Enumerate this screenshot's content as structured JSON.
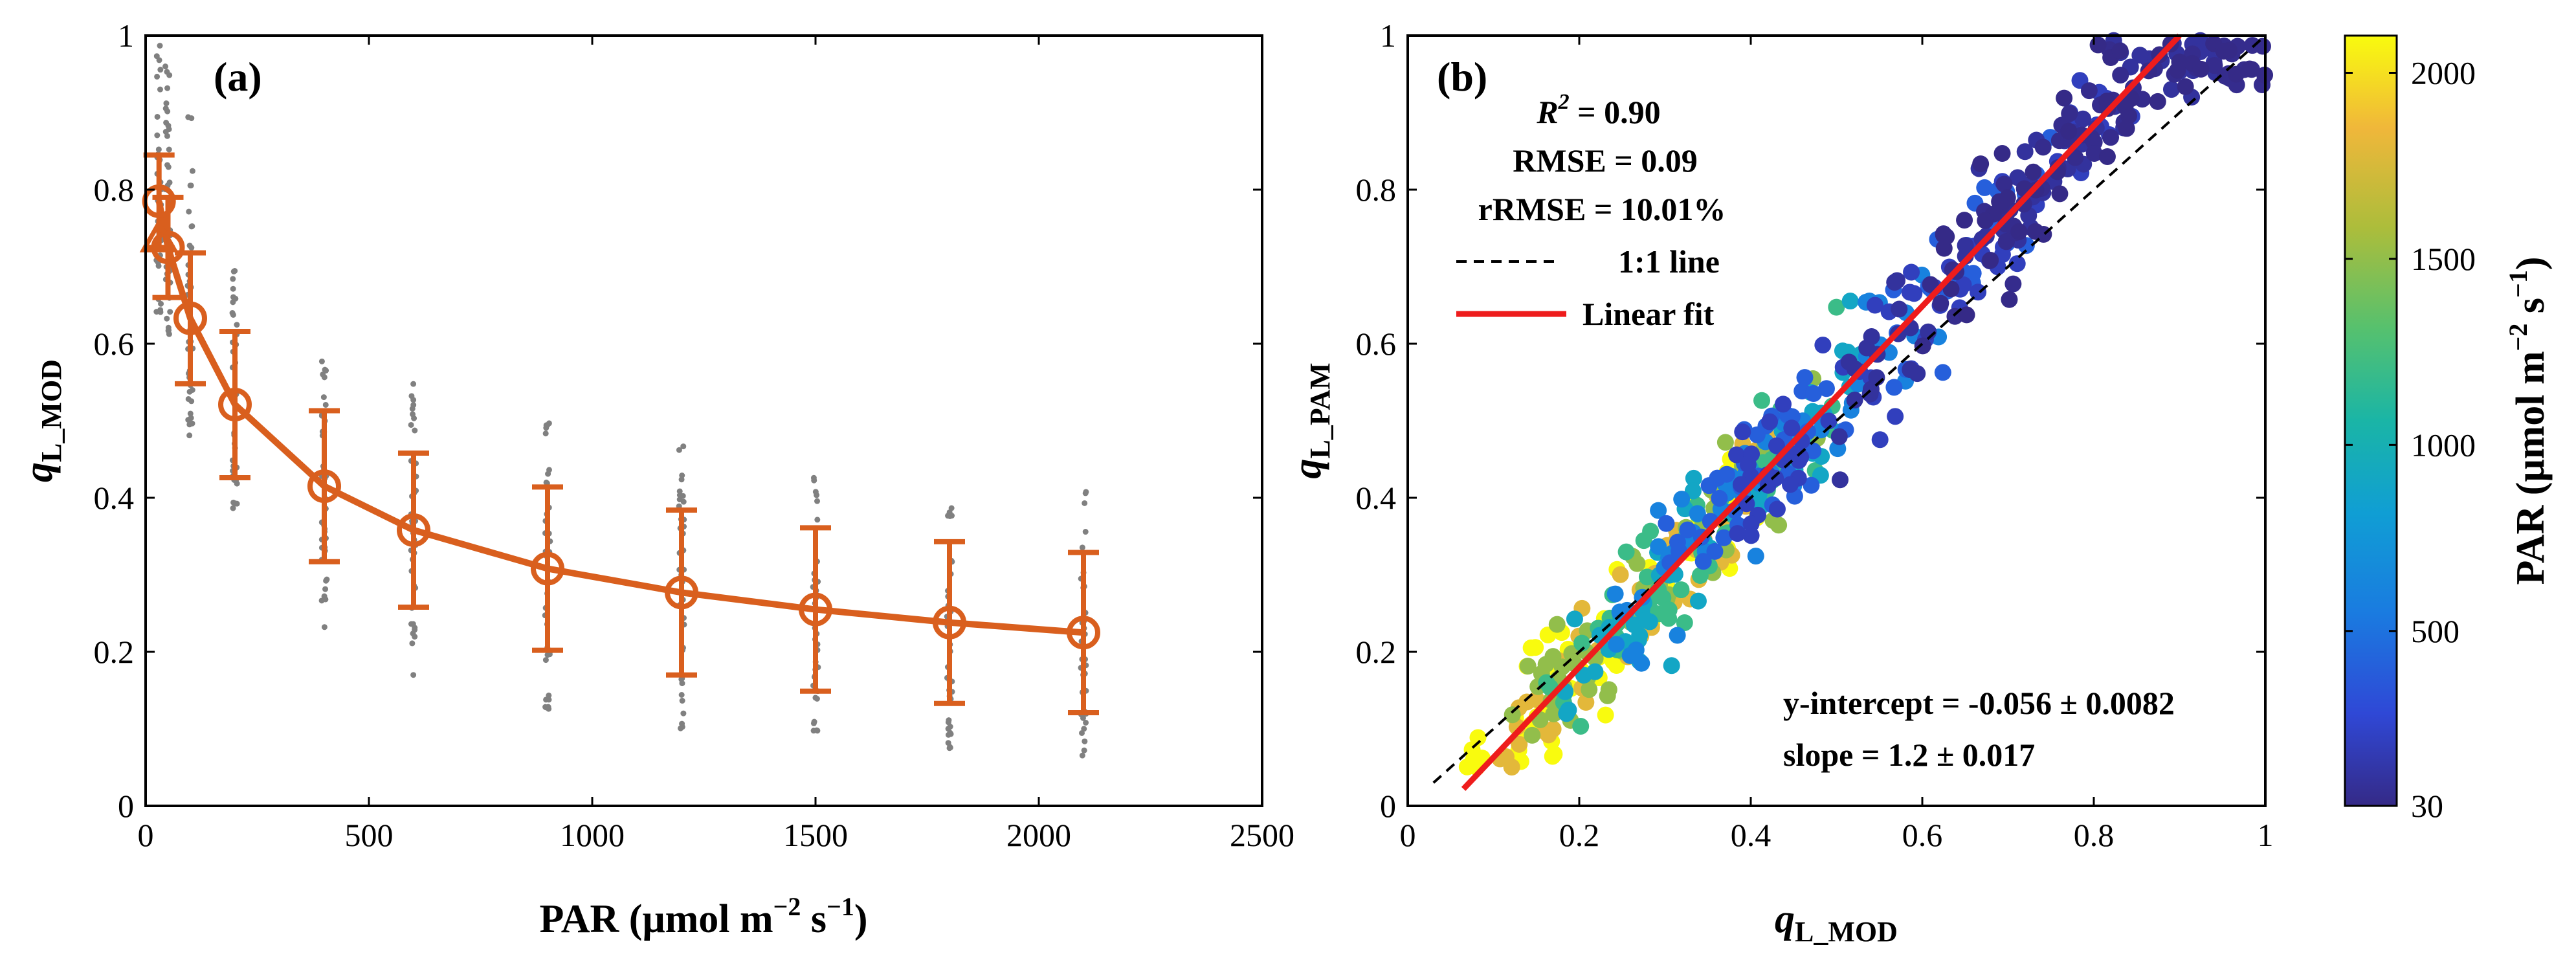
{
  "chart_data": [
    {
      "type": "line",
      "panel_label": "(a)",
      "xlabel": {
        "main": "PAR (μmol m",
        "sup1": "−2",
        "mid": " s",
        "sup2": "−1",
        "end": ")"
      },
      "ylabel": {
        "main": "q",
        "sub": "L_MOD"
      },
      "xlim": [
        0,
        2500
      ],
      "ylim": [
        0,
        1
      ],
      "xticks": [
        0,
        500,
        1000,
        1500,
        2000,
        2500
      ],
      "yticks": [
        0,
        0.2,
        0.4,
        0.6,
        0.8,
        1
      ],
      "xtick_labels": [
        "0",
        "500",
        "1000",
        "1500",
        "2000",
        "2500"
      ],
      "ytick_labels": [
        "0",
        "0.2",
        "0.4",
        "0.6",
        "0.8",
        "1"
      ],
      "series": [
        {
          "marker": "circle-line",
          "color": "#d95f1e",
          "x": [
            30,
            50,
            100,
            200,
            400,
            600,
            900,
            1200,
            1500,
            1800,
            2100
          ],
          "y": [
            0.785,
            0.725,
            0.633,
            0.521,
            0.415,
            0.358,
            0.308,
            0.277,
            0.255,
            0.238,
            0.225
          ],
          "error": [
            0.06,
            0.065,
            0.085,
            0.095,
            0.098,
            0.1,
            0.106,
            0.107,
            0.106,
            0.105,
            0.104
          ]
        },
        {
          "marker": "triangle",
          "color": "#d95f1e",
          "x": [
            30
          ],
          "y": [
            0.735
          ]
        }
      ],
      "scatter_raw": {
        "color": "#808080",
        "x": [
          30,
          50,
          100,
          200,
          400,
          600,
          900,
          1200,
          1500,
          1800,
          2100
        ],
        "y_min": [
          0.64,
          0.6,
          0.48,
          0.36,
          0.23,
          0.17,
          0.125,
          0.1,
          0.085,
          0.075,
          0.065
        ],
        "y_max": [
          0.99,
          0.96,
          0.9,
          0.72,
          0.59,
          0.55,
          0.5,
          0.475,
          0.45,
          0.43,
          0.415
        ]
      }
    },
    {
      "type": "scatter",
      "panel_label": "(b)",
      "xlabel": {
        "main": "q",
        "sub": "L_MOD"
      },
      "ylabel": {
        "main": "q",
        "sub": "L_PAM"
      },
      "xlim": [
        0,
        1
      ],
      "ylim": [
        0,
        1
      ],
      "xticks": [
        0,
        0.2,
        0.4,
        0.6,
        0.8,
        1
      ],
      "yticks": [
        0,
        0.2,
        0.4,
        0.6,
        0.8,
        1
      ],
      "xtick_labels": [
        "0",
        "0.2",
        "0.4",
        "0.6",
        "0.8",
        "1"
      ],
      "ytick_labels": [
        "0",
        "0.2",
        "0.4",
        "0.6",
        "0.8",
        "1"
      ],
      "stats": {
        "r2_label": "R",
        "r2_sup": "2",
        "r2_value": " = 0.90",
        "rmse": "RMSE = 0.09",
        "rrmse": "rRMSE = 10.01%"
      },
      "legend": {
        "position": "upper-left",
        "entries": [
          {
            "label": "1:1 line",
            "style": "dashed",
            "color": "#000000"
          },
          {
            "label": "Linear fit",
            "style": "solid",
            "color": "#ee1c1c"
          }
        ]
      },
      "fit_text": {
        "intercept": "y-intercept = -0.056 ± 0.0082",
        "slope": "slope = 1.2 ± 0.017"
      },
      "fit_line": {
        "x": [
          0.065,
          0.9
        ],
        "y": [
          0.022,
          1.0
        ]
      },
      "one_to_one": {
        "x": [
          0.03,
          1.0
        ],
        "y": [
          0.03,
          1.0
        ]
      },
      "point_clusters": [
        {
          "par": 2100,
          "x": [
            0.06,
            0.42
          ],
          "n": 55
        },
        {
          "par": 1800,
          "x": [
            0.1,
            0.45
          ],
          "n": 55
        },
        {
          "par": 1500,
          "x": [
            0.12,
            0.48
          ],
          "n": 55
        },
        {
          "par": 1200,
          "x": [
            0.16,
            0.5
          ],
          "n": 55
        },
        {
          "par": 900,
          "x": [
            0.18,
            0.55
          ],
          "n": 55
        },
        {
          "par": 600,
          "x": [
            0.24,
            0.62
          ],
          "n": 60
        },
        {
          "par": 400,
          "x": [
            0.3,
            0.75
          ],
          "n": 65
        },
        {
          "par": 200,
          "x": [
            0.38,
            0.85
          ],
          "n": 70
        },
        {
          "par": 100,
          "x": [
            0.5,
            0.95
          ],
          "n": 70
        },
        {
          "par": 50,
          "x": [
            0.6,
            1.0
          ],
          "n": 60
        },
        {
          "par": 30,
          "x": [
            0.62,
            1.0
          ],
          "n": 50
        }
      ],
      "colorbar": {
        "colormap": "parula",
        "range": [
          30,
          2100
        ],
        "ticks": [
          30,
          500,
          1000,
          1500,
          2000
        ],
        "tick_labels": [
          "30",
          "500",
          "1000",
          "1500",
          "2000"
        ],
        "label": {
          "main": "PAR (μmol m",
          "sup1": "−2",
          "mid": " s",
          "sup2": "−1",
          "end": ")"
        }
      }
    }
  ]
}
